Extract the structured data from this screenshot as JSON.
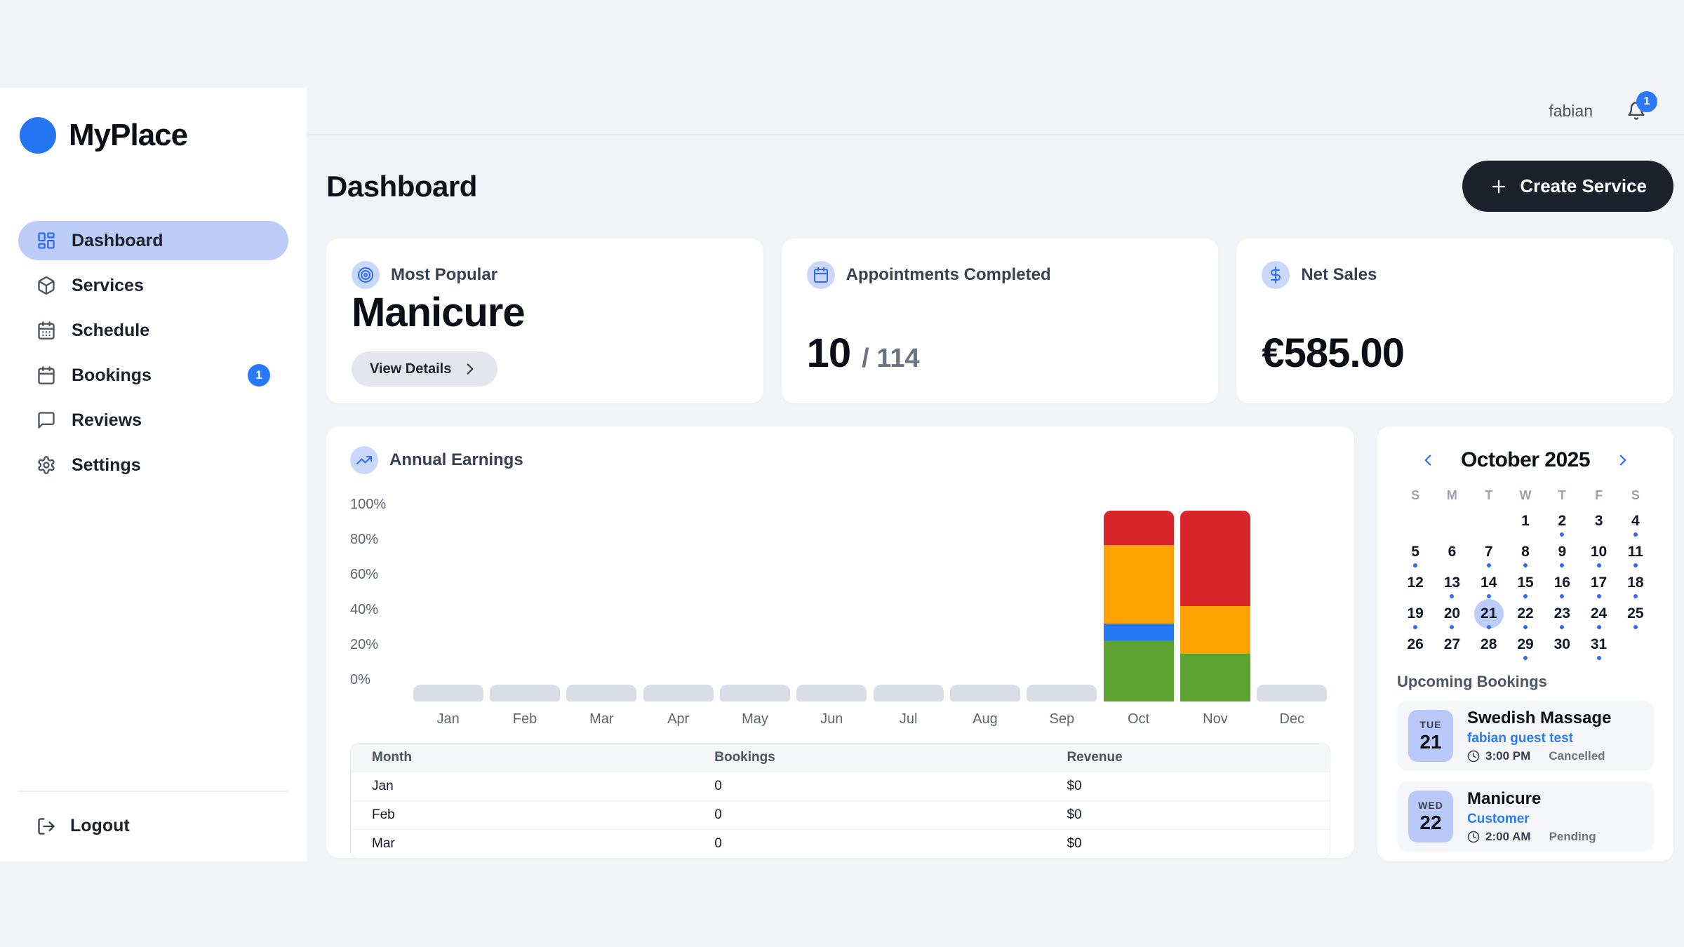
{
  "brand": {
    "name": "MyPlace"
  },
  "topbar": {
    "username": "fabian",
    "notification_count": "1"
  },
  "sidebar": {
    "items": [
      {
        "label": "Dashboard",
        "icon": "dashboard-grid-icon",
        "active": true
      },
      {
        "label": "Services",
        "icon": "package-icon"
      },
      {
        "label": "Schedule",
        "icon": "calendar-days-icon"
      },
      {
        "label": "Bookings",
        "icon": "calendar-icon",
        "badge": "1"
      },
      {
        "label": "Reviews",
        "icon": "chat-icon"
      },
      {
        "label": "Settings",
        "icon": "gear-icon"
      }
    ],
    "logout_label": "Logout"
  },
  "page": {
    "title": "Dashboard",
    "create_button_label": "Create Service"
  },
  "stats": [
    {
      "label": "Most Popular",
      "icon": "target-icon",
      "value": "Manicure",
      "action_label": "View Details"
    },
    {
      "label": "Appointments Completed",
      "icon": "calendar-icon",
      "value": "10",
      "total": "/ 114"
    },
    {
      "label": "Net Sales",
      "icon": "dollar-icon",
      "value": "€585.00"
    }
  ],
  "chart_data": {
    "type": "bar",
    "stacked": true,
    "title": "Annual Earnings",
    "icon": "trend-up-icon",
    "categories": [
      "Jan",
      "Feb",
      "Mar",
      "Apr",
      "May",
      "Jun",
      "Jul",
      "Aug",
      "Sep",
      "Oct",
      "Nov",
      "Dec"
    ],
    "y_ticks": [
      "100%",
      "80%",
      "60%",
      "40%",
      "20%",
      "0%"
    ],
    "ylim": [
      0,
      100
    ],
    "grid": false,
    "legend": false,
    "series": [
      {
        "name": "green",
        "color": "#5ca331",
        "values": [
          0,
          0,
          0,
          0,
          0,
          0,
          0,
          0,
          0,
          32,
          25,
          0
        ]
      },
      {
        "name": "blue",
        "color": "#2478f2",
        "values": [
          0,
          0,
          0,
          0,
          0,
          0,
          0,
          0,
          0,
          9,
          0,
          0
        ]
      },
      {
        "name": "orange",
        "color": "#ffa305",
        "values": [
          0,
          0,
          0,
          0,
          0,
          0,
          0,
          0,
          0,
          41,
          25,
          0
        ]
      },
      {
        "name": "red",
        "color": "#d9262b",
        "values": [
          0,
          0,
          0,
          0,
          0,
          0,
          0,
          0,
          0,
          18,
          50,
          0
        ]
      }
    ],
    "empty_month_placeholder_color": "#d9dde6",
    "table": {
      "headers": [
        "Month",
        "Bookings",
        "Revenue"
      ],
      "rows": [
        [
          "Jan",
          "0",
          "$0"
        ],
        [
          "Feb",
          "0",
          "$0"
        ],
        [
          "Mar",
          "0",
          "$0"
        ]
      ]
    }
  },
  "calendar": {
    "title": "October 2025",
    "weekdays": [
      "S",
      "M",
      "T",
      "W",
      "T",
      "F",
      "S"
    ],
    "weeks": [
      [
        null,
        null,
        null,
        {
          "day": "1"
        },
        {
          "day": "2",
          "dot": true
        },
        {
          "day": "3"
        },
        {
          "day": "4",
          "dot": true
        }
      ],
      [
        {
          "day": "5",
          "dot": true
        },
        {
          "day": "6"
        },
        {
          "day": "7",
          "dot": true
        },
        {
          "day": "8",
          "dot": true
        },
        {
          "day": "9",
          "dot": true
        },
        {
          "day": "10",
          "dot": true
        },
        {
          "day": "11",
          "dot": true
        }
      ],
      [
        {
          "day": "12"
        },
        {
          "day": "13",
          "dot": true
        },
        {
          "day": "14",
          "dot": true
        },
        {
          "day": "15",
          "dot": true
        },
        {
          "day": "16",
          "dot": true
        },
        {
          "day": "17",
          "dot": true
        },
        {
          "day": "18",
          "dot": true
        }
      ],
      [
        {
          "day": "19",
          "dot": true
        },
        {
          "day": "20",
          "dot": true
        },
        {
          "day": "21",
          "dot": true,
          "selected": true
        },
        {
          "day": "22",
          "dot": true
        },
        {
          "day": "23",
          "dot": true
        },
        {
          "day": "24",
          "dot": true
        },
        {
          "day": "25",
          "dot": true
        }
      ],
      [
        {
          "day": "26"
        },
        {
          "day": "27"
        },
        {
          "day": "28"
        },
        {
          "day": "29",
          "dot": true
        },
        {
          "day": "30"
        },
        {
          "day": "31",
          "dot": true
        },
        null
      ]
    ]
  },
  "upcoming": {
    "title": "Upcoming Bookings",
    "items": [
      {
        "weekday": "TUE",
        "day": "21",
        "service": "Swedish Massage",
        "customer": "fabian guest test",
        "time": "3:00 PM",
        "status": "Cancelled"
      },
      {
        "weekday": "WED",
        "day": "22",
        "service": "Manicure",
        "customer": "Customer",
        "time": "2:00 AM",
        "status": "Pending"
      }
    ]
  },
  "colors": {
    "accent_blue": "#2575f2",
    "active_pill": "#bdcdfa",
    "badge_blue": "#2979ff",
    "link_blue": "#2b7bf3",
    "dark_button": "#1c212b",
    "page_background": "#f2f3f6"
  }
}
